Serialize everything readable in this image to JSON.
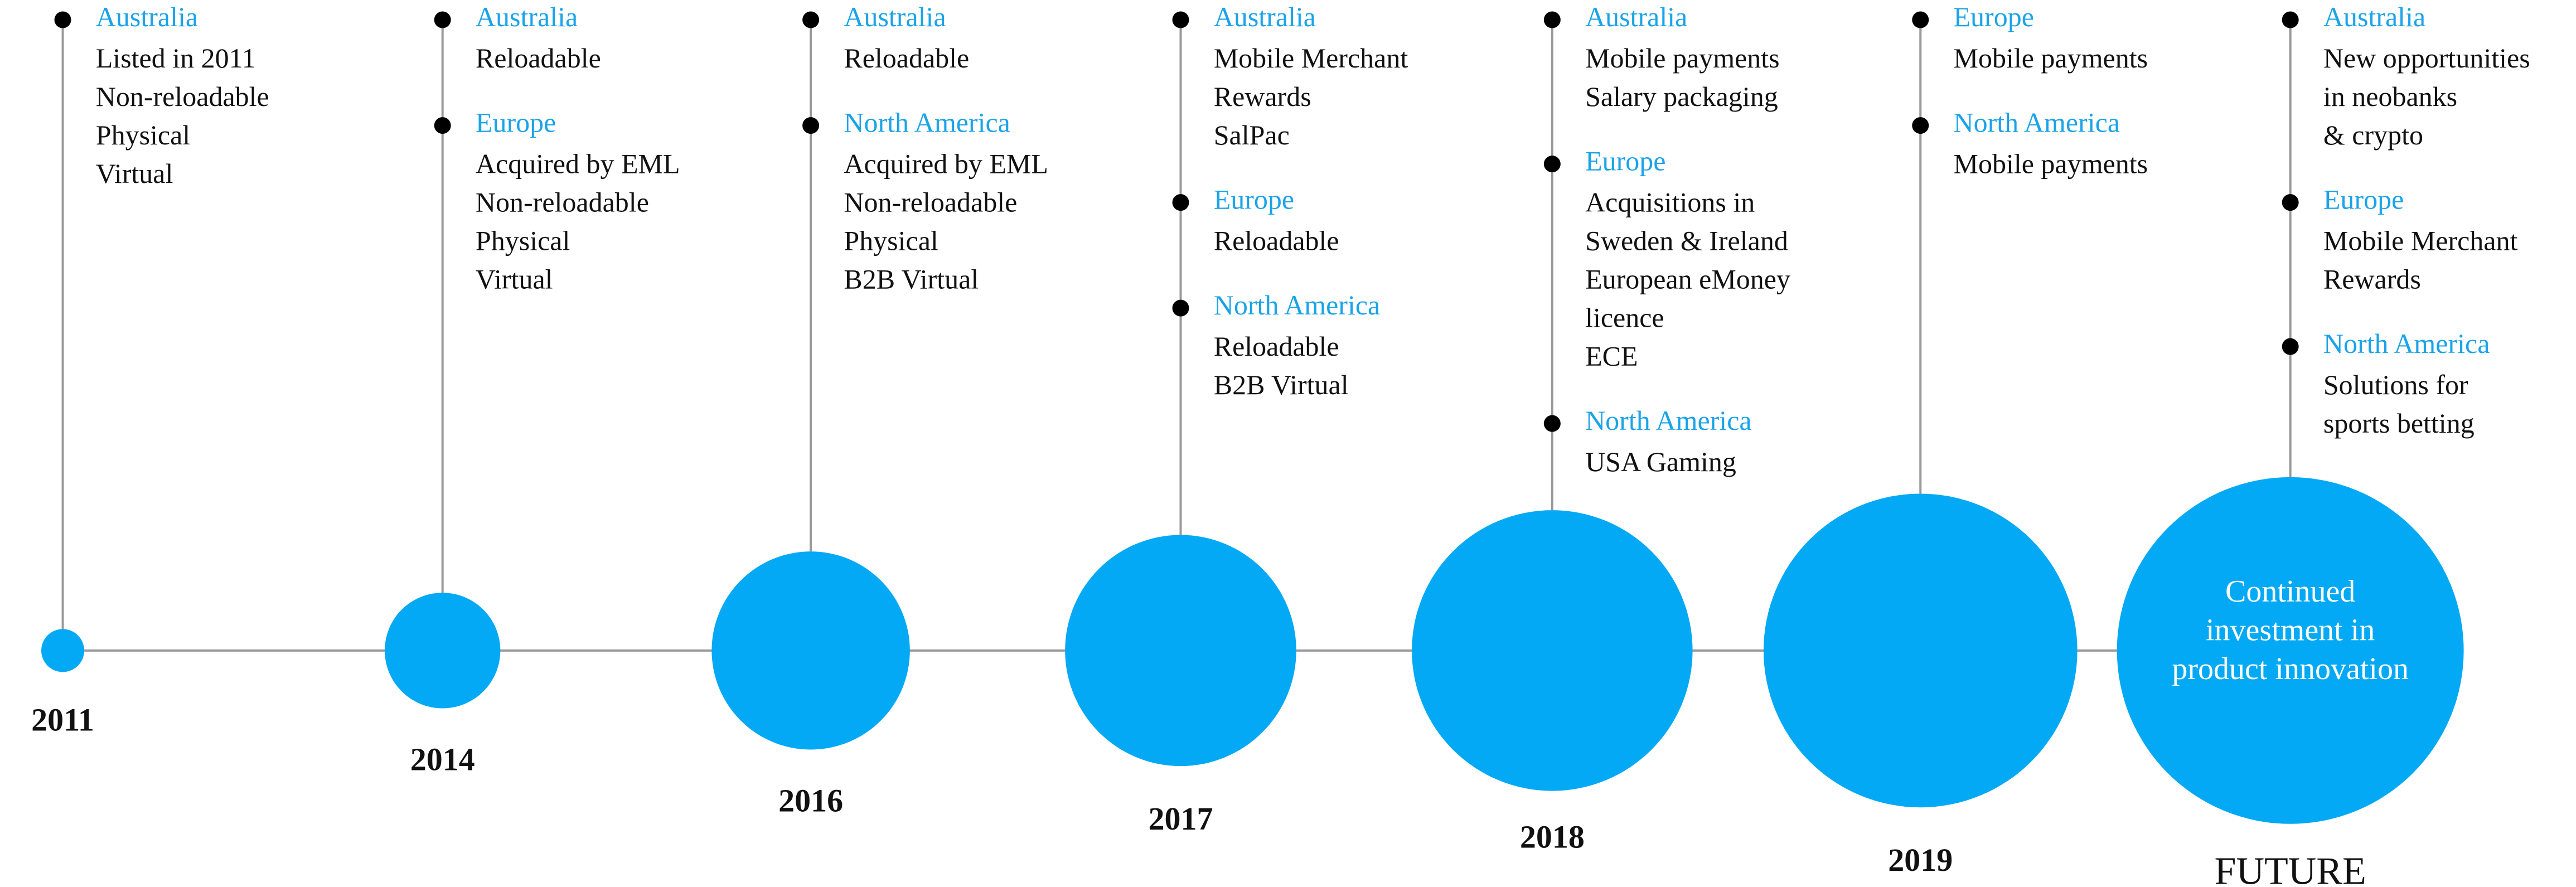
{
  "columns": [
    {
      "year": "2011",
      "regions": [
        {
          "name": "Australia",
          "items": [
            "Listed in 2011",
            "Non-reloadable",
            "Physical",
            "Virtual"
          ]
        }
      ]
    },
    {
      "year": "2014",
      "regions": [
        {
          "name": "Australia",
          "items": [
            "Reloadable"
          ]
        },
        {
          "name": "Europe",
          "items": [
            "Acquired by EML",
            "Non-reloadable",
            "Physical",
            "Virtual"
          ]
        }
      ]
    },
    {
      "year": "2016",
      "regions": [
        {
          "name": "Australia",
          "items": [
            "Reloadable"
          ]
        },
        {
          "name": "North America",
          "items": [
            "Acquired by EML",
            "Non-reloadable",
            "Physical",
            "B2B Virtual"
          ]
        }
      ]
    },
    {
      "year": "2017",
      "regions": [
        {
          "name": "Australia",
          "items": [
            "Mobile Merchant",
            "Rewards",
            "SalPac"
          ]
        },
        {
          "name": "Europe",
          "items": [
            "Reloadable"
          ]
        },
        {
          "name": "North America",
          "items": [
            "Reloadable",
            "B2B Virtual"
          ]
        }
      ]
    },
    {
      "year": "2018",
      "regions": [
        {
          "name": "Australia",
          "items": [
            "Mobile payments",
            "Salary packaging"
          ]
        },
        {
          "name": "Europe",
          "items": [
            "Acquisitions in",
            "Sweden & Ireland",
            "European eMoney",
            "licence",
            "ECE"
          ]
        },
        {
          "name": "North America",
          "items": [
            "USA Gaming"
          ]
        }
      ]
    },
    {
      "year": "2019",
      "regions": [
        {
          "name": "Europe",
          "items": [
            "Mobile payments"
          ]
        },
        {
          "name": "North America",
          "items": [
            "Mobile payments"
          ]
        }
      ]
    },
    {
      "year": "FUTURE",
      "regions": [
        {
          "name": "Australia",
          "items": [
            "New opportunities",
            "in neobanks",
            "& crypto"
          ]
        },
        {
          "name": "Europe",
          "items": [
            "Mobile Merchant",
            "Rewards"
          ]
        },
        {
          "name": "North America",
          "items": [
            "Solutions for",
            "sports betting"
          ]
        }
      ],
      "circle_text": [
        "Continued",
        "investment in",
        "product innovation"
      ]
    }
  ]
}
